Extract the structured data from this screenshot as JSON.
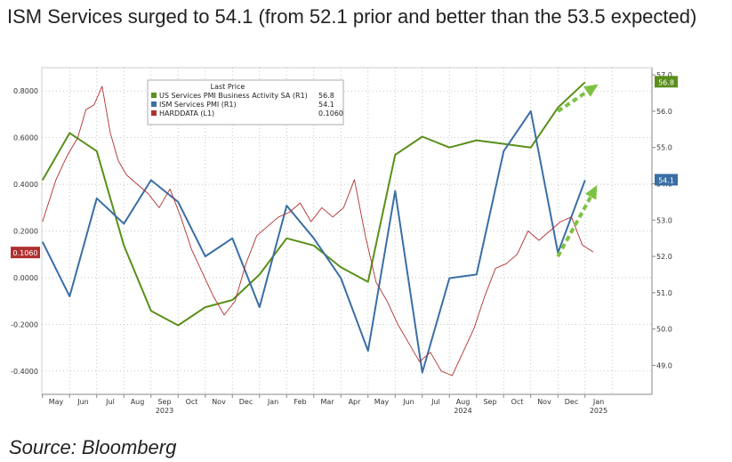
{
  "header": {
    "title": "ISM Services surged to 54.1 (from 52.1 prior and better than the 53.5 expected)"
  },
  "footer": {
    "source": "Source: Bloomberg"
  },
  "colors": {
    "green": "#5a8f1a",
    "blue": "#3a6ea5",
    "red": "#b03030",
    "arrow": "#7dc242",
    "grid": "#b8b8b8"
  },
  "chart_data": {
    "type": "line",
    "title": "",
    "legend": {
      "title": "Last Price",
      "placement": "top-center",
      "entries": [
        {
          "label": "US Services PMI Business Activity SA  (R1)",
          "value": "56.8",
          "color": "#5a8f1a"
        },
        {
          "label": "ISM Services PMI  (R1)",
          "value": "54.1",
          "color": "#3a6ea5"
        },
        {
          "label": "HARDDATA  (L1)",
          "value": "0.1060",
          "color": "#b03030"
        }
      ]
    },
    "left_axis": {
      "range": [
        -0.5,
        0.9
      ],
      "ticks": [
        "0.8000",
        "0.6000",
        "0.4000",
        "0.2000",
        "0.0000",
        "-0.2000",
        "-0.4000"
      ],
      "tick_values": [
        0.8,
        0.6,
        0.4,
        0.2,
        0.0,
        -0.2,
        -0.4
      ],
      "last_value_tag": {
        "text": "0.1060",
        "value": 0.106,
        "color": "#b03030"
      }
    },
    "right_axis": {
      "range": [
        48.2,
        57.2
      ],
      "ticks": [
        "57.0",
        "56.0",
        "55.0",
        "54.0",
        "53.0",
        "52.0",
        "51.0",
        "50.0",
        "49.0"
      ],
      "tick_values": [
        57.0,
        56.0,
        55.0,
        54.0,
        53.0,
        52.0,
        51.0,
        50.0,
        49.0
      ],
      "last_value_tags": [
        {
          "text": "56.8",
          "value": 56.8,
          "color": "#5a8f1a"
        },
        {
          "text": "54.1",
          "value": 54.1,
          "color": "#3a6ea5"
        }
      ]
    },
    "x_axis": {
      "months": [
        "May",
        "Jun",
        "Jul",
        "Aug",
        "Sep",
        "Oct",
        "Nov",
        "Dec",
        "Jan",
        "Feb",
        "Mar",
        "Apr",
        "May",
        "Jun",
        "Jul",
        "Aug",
        "Sep",
        "Oct",
        "Nov",
        "Dec",
        "Jan"
      ],
      "month_index": [
        0,
        1,
        2,
        3,
        4,
        5,
        6,
        7,
        8,
        9,
        10,
        11,
        12,
        13,
        14,
        15,
        16,
        17,
        18,
        19,
        20
      ],
      "years": [
        {
          "label": "2023",
          "month_index": 4
        },
        {
          "label": "2024",
          "month_index": 15
        },
        {
          "label": "2025",
          "month_index": 20
        }
      ]
    },
    "series": [
      {
        "name": "US Services PMI Business Activity SA",
        "axis": "right",
        "color": "#5a8f1a",
        "x": [
          -0.5,
          0.5,
          1.5,
          2.5,
          3.5,
          4.5,
          5.5,
          6.5,
          7.5,
          8.5,
          9.5,
          10.5,
          11.5,
          12.5,
          13.5,
          14.5,
          15.5,
          16.5,
          17.5,
          18.5,
          19.5
        ],
        "values": [
          54.1,
          55.4,
          54.9,
          52.3,
          50.5,
          50.1,
          50.6,
          50.8,
          51.5,
          52.5,
          52.3,
          51.7,
          51.3,
          54.8,
          55.3,
          55.0,
          55.2,
          55.1,
          55.0,
          56.1,
          56.8
        ]
      },
      {
        "name": "ISM Services PMI",
        "axis": "right",
        "color": "#3a6ea5",
        "x": [
          -0.5,
          0.5,
          1.5,
          2.5,
          3.5,
          4.5,
          5.5,
          6.5,
          7.5,
          8.5,
          9.5,
          10.5,
          11.5,
          12.5,
          13.5,
          14.5,
          15.5,
          16.5,
          17.5,
          18.5,
          19.5
        ],
        "values": [
          52.4,
          50.9,
          53.6,
          52.9,
          54.1,
          53.5,
          52.0,
          52.5,
          50.6,
          53.4,
          52.5,
          51.4,
          49.4,
          53.8,
          48.8,
          51.4,
          51.5,
          54.9,
          56.0,
          52.1,
          54.1
        ]
      },
      {
        "name": "HARDDATA",
        "axis": "left",
        "color": "#b03030",
        "x": [
          -0.5,
          0.0,
          0.4,
          0.8,
          1.1,
          1.4,
          1.7,
          2.0,
          2.3,
          2.6,
          3.0,
          3.4,
          3.8,
          4.2,
          4.6,
          5.0,
          5.4,
          5.8,
          6.2,
          6.6,
          7.0,
          7.4,
          7.8,
          8.2,
          8.6,
          9.0,
          9.4,
          9.8,
          10.2,
          10.6,
          11.0,
          11.4,
          11.8,
          12.2,
          12.6,
          13.0,
          13.4,
          13.8,
          14.2,
          14.6,
          15.0,
          15.4,
          15.8,
          16.2,
          16.6,
          17.0,
          17.4,
          17.8,
          18.2,
          18.6,
          19.0,
          19.4,
          19.8
        ],
        "values": [
          0.24,
          0.42,
          0.52,
          0.6,
          0.72,
          0.74,
          0.82,
          0.62,
          0.5,
          0.44,
          0.4,
          0.36,
          0.3,
          0.38,
          0.26,
          0.12,
          0.02,
          -0.08,
          -0.16,
          -0.1,
          0.06,
          0.18,
          0.22,
          0.26,
          0.28,
          0.32,
          0.24,
          0.3,
          0.26,
          0.3,
          0.42,
          0.18,
          -0.02,
          -0.1,
          -0.2,
          -0.28,
          -0.36,
          -0.32,
          -0.4,
          -0.42,
          -0.32,
          -0.22,
          -0.08,
          0.04,
          0.06,
          0.1,
          0.2,
          0.16,
          0.2,
          0.24,
          0.26,
          0.14,
          0.11
        ]
      }
    ],
    "annotations": [
      {
        "type": "dashed-arrow",
        "color": "#7dc242",
        "axis": "right",
        "from": {
          "x": 18.5,
          "y": 56.0
        },
        "to": {
          "x": 19.9,
          "y": 56.7
        }
      },
      {
        "type": "dashed-arrow",
        "color": "#7dc242",
        "axis": "right",
        "from": {
          "x": 18.5,
          "y": 52.0
        },
        "to": {
          "x": 19.9,
          "y": 53.9
        }
      }
    ],
    "grid": true
  }
}
